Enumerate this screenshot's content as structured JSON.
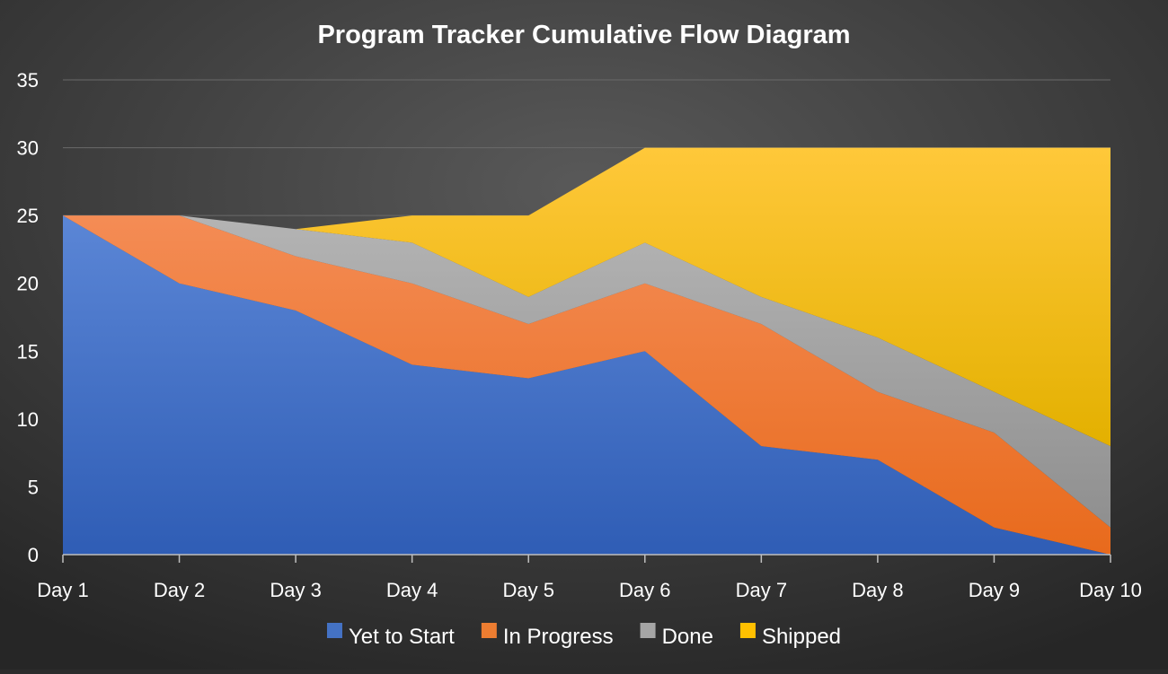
{
  "chart_data": {
    "type": "area",
    "stacked": true,
    "title": "Program Tracker Cumulative Flow Diagram",
    "xlabel": "",
    "ylabel": "",
    "categories": [
      "Day 1",
      "Day 2",
      "Day 3",
      "Day 4",
      "Day 5",
      "Day 6",
      "Day 7",
      "Day 8",
      "Day 9",
      "Day 10"
    ],
    "series": [
      {
        "name": "Yet to Start",
        "color": "#4472c4",
        "values": [
          25,
          20,
          18,
          14,
          13,
          15,
          8,
          7,
          2,
          0
        ]
      },
      {
        "name": "In Progress",
        "color": "#ed7d31",
        "values": [
          0,
          5,
          4,
          6,
          4,
          5,
          9,
          5,
          7,
          2
        ]
      },
      {
        "name": "Done",
        "color": "#a5a5a5",
        "values": [
          0,
          0,
          2,
          3,
          2,
          3,
          2,
          4,
          3,
          6
        ]
      },
      {
        "name": "Shipped",
        "color": "#ffc000",
        "values": [
          0,
          0,
          0,
          2,
          6,
          7,
          11,
          14,
          18,
          22
        ]
      }
    ],
    "ylim": [
      0,
      35
    ],
    "yticks": [
      0,
      5,
      10,
      15,
      20,
      25,
      30,
      35
    ],
    "grid": true,
    "legend_position": "bottom"
  }
}
